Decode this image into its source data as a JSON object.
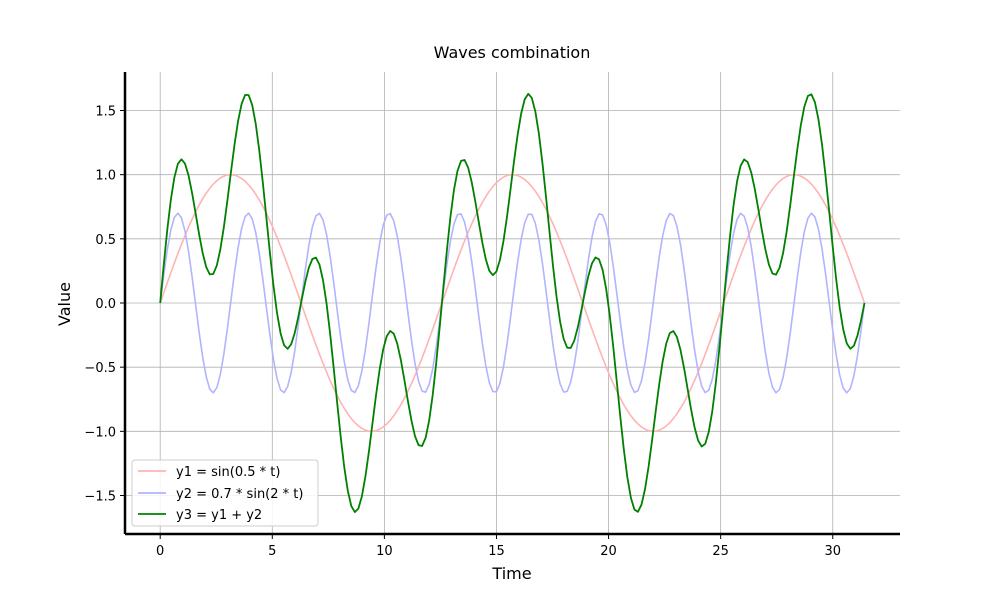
{
  "chart_data": {
    "type": "line",
    "title": "Waves combination",
    "xlabel": "Time",
    "ylabel": "Value",
    "xlim": [
      -1.57,
      33.0
    ],
    "ylim": [
      -1.8,
      1.8
    ],
    "x_ticks": [
      0,
      5,
      10,
      15,
      20,
      25,
      30
    ],
    "y_ticks": [
      -1.5,
      -1.0,
      -0.5,
      0.0,
      0.5,
      1.0,
      1.5
    ],
    "x_tick_labels": [
      "0",
      "5",
      "10",
      "15",
      "20",
      "25",
      "30"
    ],
    "y_tick_labels": [
      "−1.5",
      "−1.0",
      "−0.5",
      "0.0",
      "0.5",
      "1.0",
      "1.5"
    ],
    "grid": true,
    "legend_position": "lower-left",
    "x_range": [
      0,
      31.4159
    ],
    "series": [
      {
        "name": "y1 = sin(0.5 * t)",
        "formula": "sin(0.5*t)",
        "color": "#ffb3b3"
      },
      {
        "name": "y2 = 0.7 * sin(2 * t)",
        "formula": "0.7*sin(2*t)",
        "color": "#b3b3ff"
      },
      {
        "name": "y3 = y1 + y2",
        "formula": "sin(0.5*t)+0.7*sin(2*t)",
        "color": "#008000"
      }
    ]
  }
}
